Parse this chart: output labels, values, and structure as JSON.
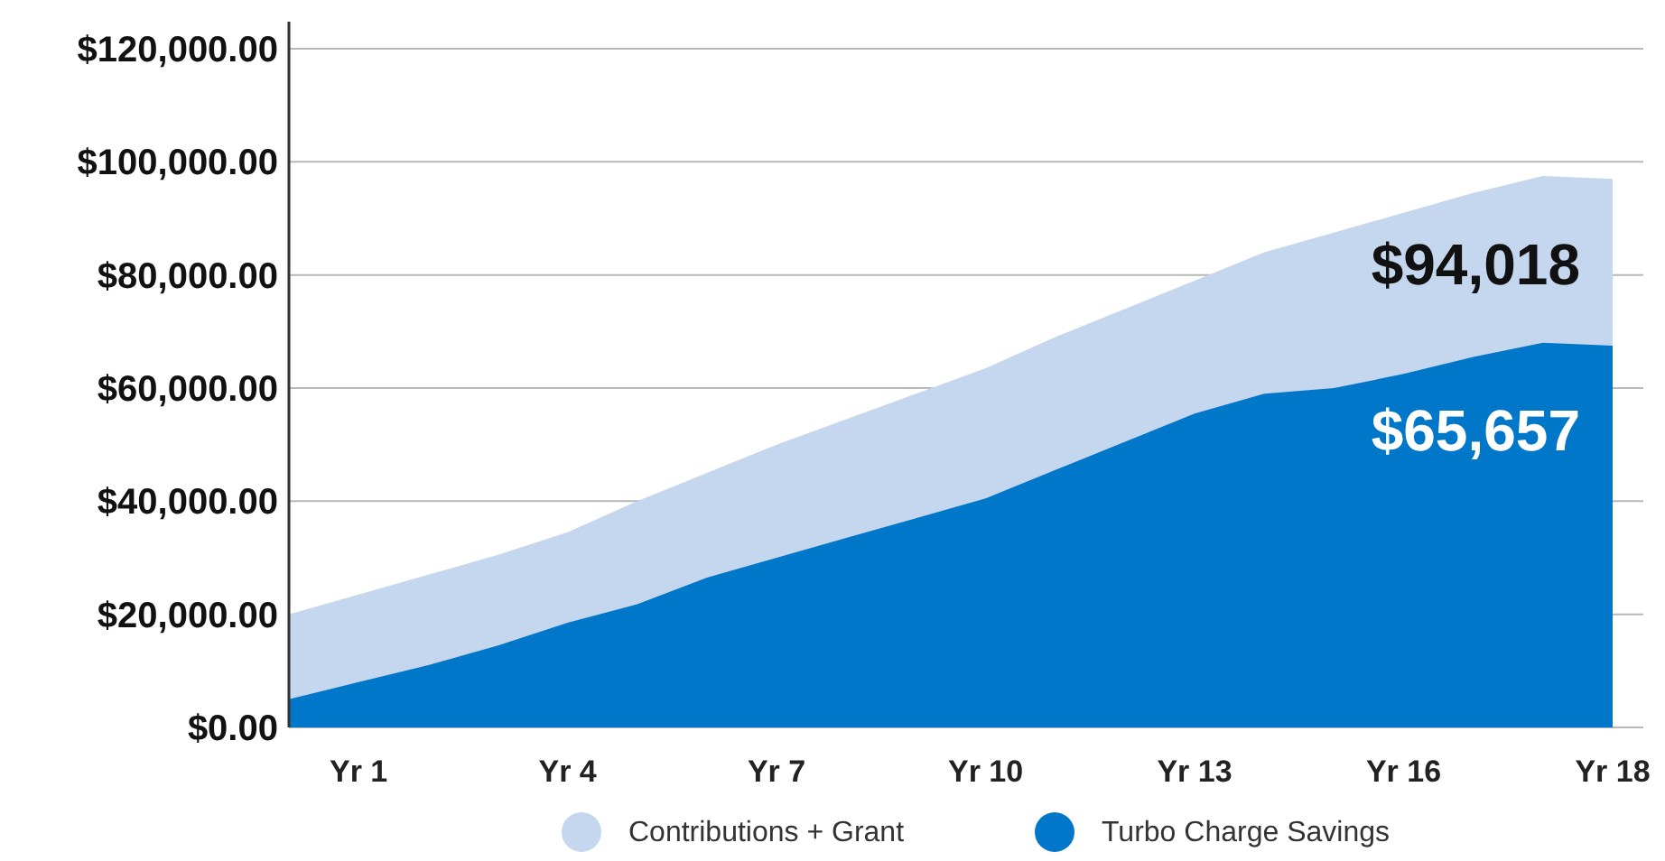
{
  "chart_data": {
    "type": "area",
    "categories": [
      null,
      "Yr 1",
      null,
      null,
      "Yr 4",
      null,
      null,
      "Yr 7",
      null,
      null,
      "Yr 10",
      null,
      null,
      "Yr 13",
      null,
      null,
      "Yr 16",
      null,
      null,
      "Yr 18"
    ],
    "series": [
      {
        "name": "Contributions + Grant",
        "color": "#c5d6ef",
        "values": [
          20000,
          23500,
          27000,
          30500,
          34500,
          40000,
          45000,
          50000,
          54500,
          59000,
          63500,
          69000,
          74000,
          79000,
          84000,
          87500,
          91000,
          94500,
          97500,
          97000
        ]
      },
      {
        "name": "Turbo Charge Savings",
        "color": "#0077c8",
        "values": [
          5000,
          8000,
          11000,
          14500,
          18500,
          21800,
          26500,
          30000,
          33500,
          37000,
          40500,
          45500,
          50500,
          55500,
          59000,
          60000,
          62500,
          65500,
          68000,
          67500
        ]
      }
    ],
    "ylim": [
      0,
      120000
    ],
    "yticks": [
      {
        "value": 0,
        "label": "$0.00"
      },
      {
        "value": 20000,
        "label": "$20,000.00"
      },
      {
        "value": 40000,
        "label": "$40,000.00"
      },
      {
        "value": 60000,
        "label": "$60,000.00"
      },
      {
        "value": 80000,
        "label": "$80,000.00"
      },
      {
        "value": 100000,
        "label": "$100,000.00"
      },
      {
        "value": 120000,
        "label": "$120,000.00"
      }
    ],
    "grid": "y",
    "legend": "bottom",
    "annotations": [
      "$94,018",
      "$65,657"
    ]
  }
}
